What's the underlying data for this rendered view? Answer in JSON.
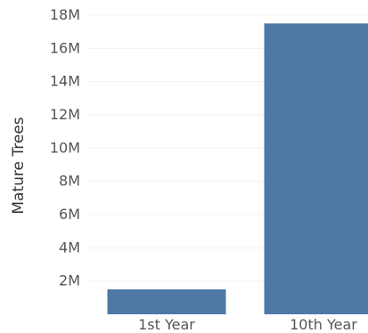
{
  "chart_data": {
    "type": "bar",
    "categories": [
      "1st Year",
      "10th Year"
    ],
    "values": [
      1500000,
      17500000
    ],
    "title": "",
    "xlabel": "",
    "ylabel": "Mature Trees",
    "ylim": [
      0,
      18000000
    ],
    "yticks": [
      2000000,
      4000000,
      6000000,
      8000000,
      10000000,
      12000000,
      14000000,
      16000000,
      18000000
    ],
    "ytick_labels": [
      "2M",
      "4M",
      "6M",
      "8M",
      "10M",
      "12M",
      "14M",
      "16M",
      "18M"
    ],
    "bar_color": "#4e79a7",
    "grid": true,
    "legend": "none"
  }
}
